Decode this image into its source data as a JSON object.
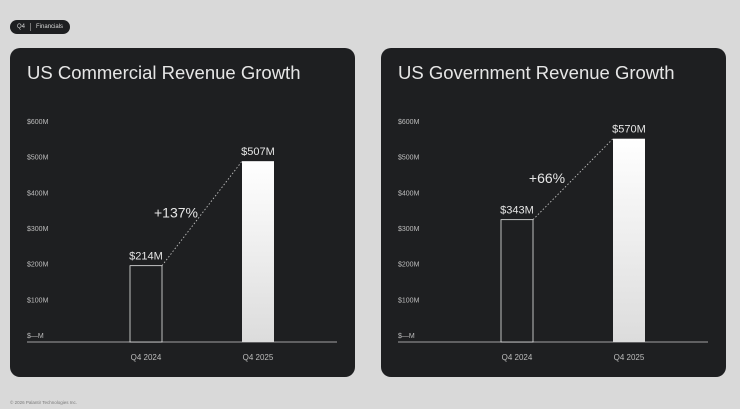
{
  "badge": {
    "section": "Q4",
    "label": "Financials"
  },
  "footer": {
    "copyright": "© 2026 Palantir Technologies Inc."
  },
  "chart_data": [
    {
      "type": "bar",
      "title": "US Commercial Revenue Growth",
      "categories": [
        "Q4 2024",
        "Q4 2025"
      ],
      "values": [
        214,
        507
      ],
      "value_labels": [
        "$214M",
        "$507M"
      ],
      "growth_label": "+137%",
      "yticks": [
        0,
        100,
        200,
        300,
        400,
        500,
        600
      ],
      "ytick_labels": [
        "$—M",
        "$100M",
        "$200M",
        "$300M",
        "$400M",
        "$500M",
        "$600M"
      ],
      "ylim": [
        0,
        600
      ],
      "grid": false,
      "legend": "none",
      "colors": {
        "first_bar_fill": "#1e1f21",
        "first_bar_stroke": "#e8e8e8",
        "last_bar_top": "#ffffff",
        "last_bar_bottom": "#dcdcdc"
      }
    },
    {
      "type": "bar",
      "title": "US Government Revenue Growth",
      "categories": [
        "Q4 2024",
        "Q4 2025"
      ],
      "values": [
        343,
        570
      ],
      "value_labels": [
        "$343M",
        "$570M"
      ],
      "growth_label": "+66%",
      "yticks": [
        0,
        100,
        200,
        300,
        400,
        500,
        600
      ],
      "ytick_labels": [
        "$—M",
        "$100M",
        "$200M",
        "$300M",
        "$400M",
        "$500M",
        "$600M"
      ],
      "ylim": [
        0,
        600
      ],
      "grid": false,
      "legend": "none",
      "colors": {
        "first_bar_fill": "#1e1f21",
        "first_bar_stroke": "#e8e8e8",
        "last_bar_top": "#ffffff",
        "last_bar_bottom": "#dcdcdc"
      }
    }
  ]
}
